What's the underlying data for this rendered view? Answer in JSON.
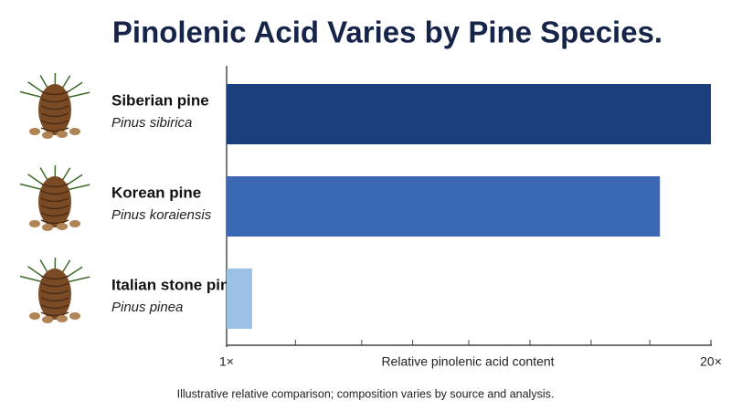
{
  "chart_data": {
    "type": "hbar",
    "title": "Pinolenic Acid Varies by Pine Species.",
    "categories": [
      "Siberian pine",
      "Korean pine",
      "Italian stone pine"
    ],
    "species": [
      "Pinus sibirica",
      "Pinus koraiensis",
      "Pinus pinea"
    ],
    "values": [
      20,
      18,
      2
    ],
    "colors": [
      "#1b3f7c",
      "#3a68b2",
      "#9cbfe6"
    ],
    "xlim": [
      1,
      20
    ],
    "xticks": [
      {
        "value": 1,
        "label": "1×"
      },
      {
        "value": 20,
        "label": "20×"
      }
    ],
    "minor_ticks": [
      3.7,
      6.3,
      8.3,
      10.5,
      12.9,
      15.3,
      17.6
    ],
    "xlabel": "Relative pinolenic acid content",
    "note": "Illustrative relative comparison; composition varies by source and analysis."
  }
}
